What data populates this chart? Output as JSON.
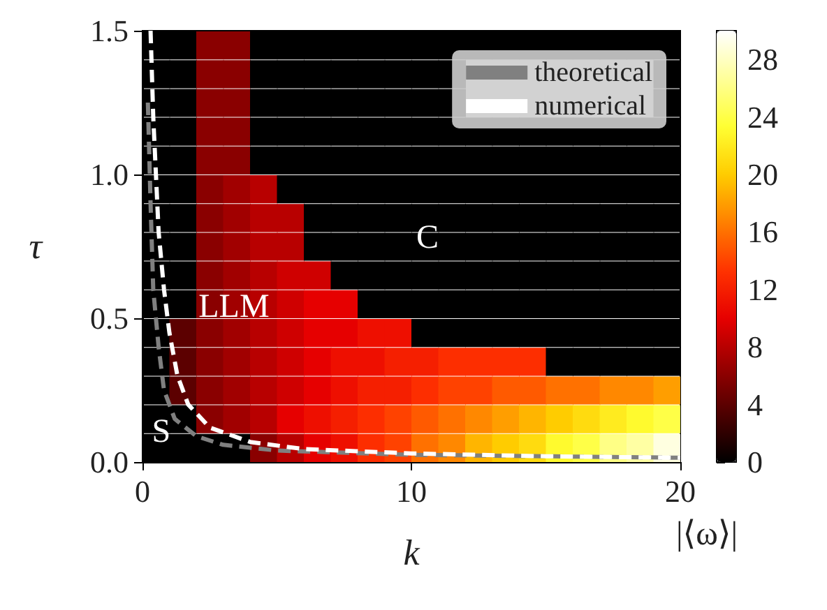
{
  "chart_data": {
    "type": "heatmap",
    "xlabel": "k",
    "ylabel": "τ",
    "clabel": "|⟨ω⟩|",
    "x": [
      0.5,
      1.5,
      2.5,
      3.5,
      4.5,
      5.5,
      6.5,
      7.5,
      8.5,
      9.5,
      10.5,
      11.5,
      12.5,
      13.5,
      14.5,
      15.5,
      16.5,
      17.5,
      18.5,
      19.5
    ],
    "y": [
      1.45,
      1.35,
      1.25,
      1.15,
      1.05,
      0.95,
      0.85,
      0.75,
      0.65,
      0.55,
      0.45,
      0.35,
      0.25,
      0.15,
      0.05
    ],
    "cells": [
      [
        0,
        0,
        6,
        6,
        0,
        0,
        0,
        0,
        0,
        0,
        0,
        0,
        0,
        0,
        0,
        0,
        0,
        0,
        0,
        0
      ],
      [
        0,
        0,
        6,
        6,
        0,
        0,
        0,
        0,
        0,
        0,
        0,
        0,
        null,
        null,
        null,
        null,
        null,
        null,
        null,
        0
      ],
      [
        0,
        0,
        6,
        6,
        0,
        0,
        0,
        0,
        0,
        0,
        0,
        0,
        null,
        null,
        null,
        null,
        null,
        null,
        null,
        0
      ],
      [
        0,
        0,
        6,
        6,
        0,
        0,
        0,
        0,
        0,
        0,
        0,
        0,
        0,
        0,
        0,
        0,
        0,
        0,
        0,
        0
      ],
      [
        0,
        0,
        6,
        6,
        0,
        0,
        0,
        0,
        0,
        0,
        0,
        0,
        0,
        0,
        0,
        0,
        0,
        0,
        0,
        0
      ],
      [
        0,
        0,
        6,
        7,
        8,
        0,
        0,
        0,
        0,
        0,
        0,
        0,
        0,
        0,
        0,
        0,
        0,
        0,
        0,
        0
      ],
      [
        0,
        0,
        6,
        7,
        8,
        8,
        0,
        0,
        0,
        0,
        0,
        0,
        0,
        0,
        0,
        0,
        0,
        0,
        0,
        0
      ],
      [
        0,
        0,
        6,
        7,
        8,
        8,
        0,
        0,
        0,
        0,
        0,
        0,
        0,
        0,
        0,
        0,
        0,
        0,
        0,
        0
      ],
      [
        0,
        0,
        6,
        7,
        8,
        9,
        9,
        0,
        0,
        0,
        0,
        0,
        0,
        0,
        0,
        0,
        0,
        0,
        0,
        0
      ],
      [
        0,
        0,
        6,
        7,
        8,
        9,
        10,
        10,
        0,
        0,
        0,
        0,
        0,
        0,
        0,
        0,
        0,
        0,
        0,
        0
      ],
      [
        0,
        4,
        6,
        7,
        8,
        9,
        10,
        10,
        11,
        11,
        0,
        0,
        0,
        0,
        0,
        0,
        0,
        0,
        0,
        0
      ],
      [
        0,
        4,
        6,
        7,
        8,
        9,
        10,
        11,
        11,
        12,
        12,
        13,
        13,
        13,
        13,
        0,
        0,
        0,
        0,
        0
      ],
      [
        0,
        4,
        6,
        7,
        8,
        9,
        10,
        11,
        12,
        12,
        13,
        14,
        14,
        15,
        15,
        16,
        16,
        17,
        17,
        18
      ],
      [
        0,
        0,
        6,
        7,
        8,
        10,
        11,
        12,
        13,
        14,
        15,
        16,
        17,
        18,
        19,
        20,
        21,
        22,
        23,
        24
      ],
      [
        0,
        0,
        0,
        0,
        6,
        8,
        10,
        11,
        13,
        14,
        16,
        17,
        19,
        20,
        21,
        23,
        24,
        26,
        27,
        29
      ]
    ],
    "clim": [
      0,
      30
    ],
    "cticks": [
      0,
      4,
      8,
      12,
      16,
      20,
      24,
      28
    ],
    "xlim": [
      0,
      20
    ],
    "xticks": [
      0,
      10,
      20
    ],
    "ylim": [
      0,
      1.5
    ],
    "yticks": [
      {
        "value": 0,
        "label": "0.0"
      },
      0.5,
      {
        "value": 1,
        "label": "1.0"
      },
      1.5
    ],
    "series": [
      {
        "name": "theoretical",
        "type": "line",
        "color": "#808080",
        "x": [
          0.2,
          0.3,
          0.4,
          0.6,
          0.8,
          1.2,
          2,
          3,
          5,
          10,
          15,
          20
        ],
        "values": [
          1.25,
          0.9,
          0.6,
          0.4,
          0.25,
          0.15,
          0.09,
          0.06,
          0.04,
          0.025,
          0.02,
          0.015
        ]
      },
      {
        "name": "numerical",
        "type": "line",
        "color": "#ffffff",
        "x": [
          0.3,
          0.4,
          0.5,
          0.6,
          0.8,
          1,
          1.3,
          1.7,
          2.5,
          4,
          6,
          10,
          15,
          20
        ],
        "values": [
          1.5,
          1.2,
          1,
          0.8,
          0.6,
          0.45,
          0.3,
          0.2,
          0.12,
          0.07,
          0.045,
          0.03,
          0.02,
          0.015
        ]
      }
    ],
    "line_style": "dashed",
    "marker": "none",
    "legend": "top right",
    "grid": false,
    "annotations": [
      "C",
      "LLM",
      "S"
    ]
  }
}
